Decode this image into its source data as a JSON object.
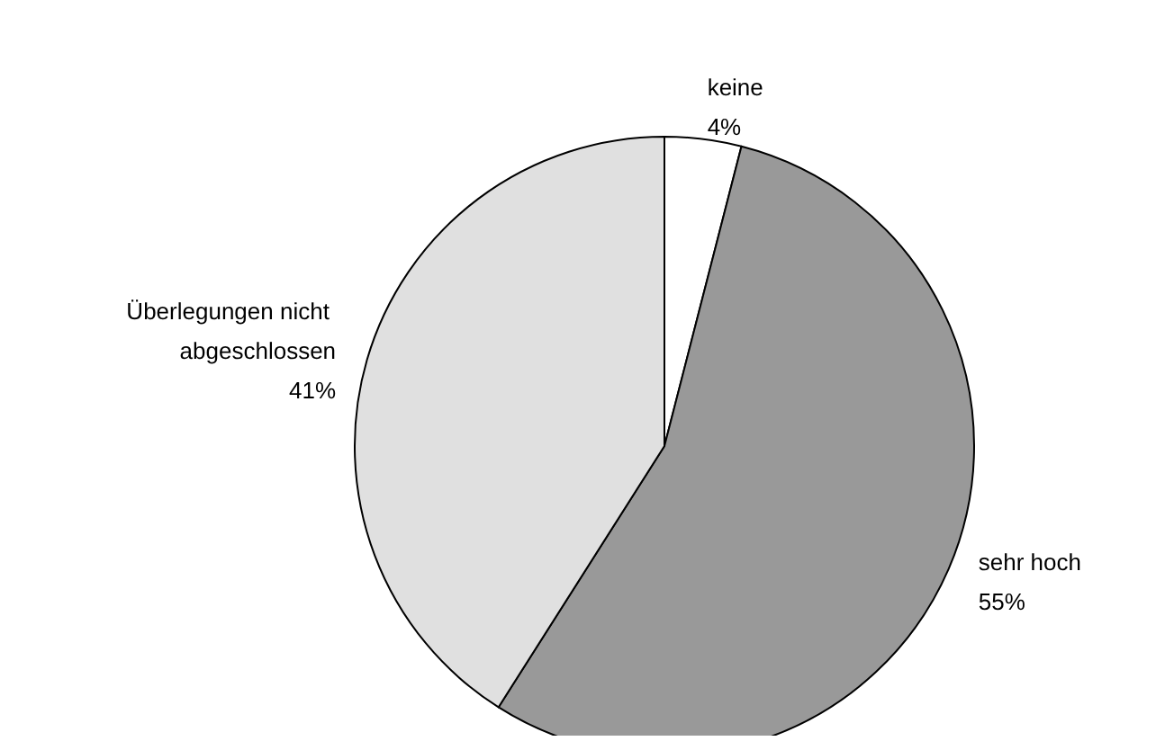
{
  "chart_data": {
    "type": "pie",
    "categories": [
      "keine",
      "sehr hoch",
      "Überlegungen nicht abgeschlossen"
    ],
    "values": [
      4,
      55,
      41
    ],
    "colors": [
      "#ffffff",
      "#999999",
      "#e0e0e0"
    ],
    "value_labels": [
      "4%",
      "55%",
      "41%"
    ],
    "legend": false
  }
}
